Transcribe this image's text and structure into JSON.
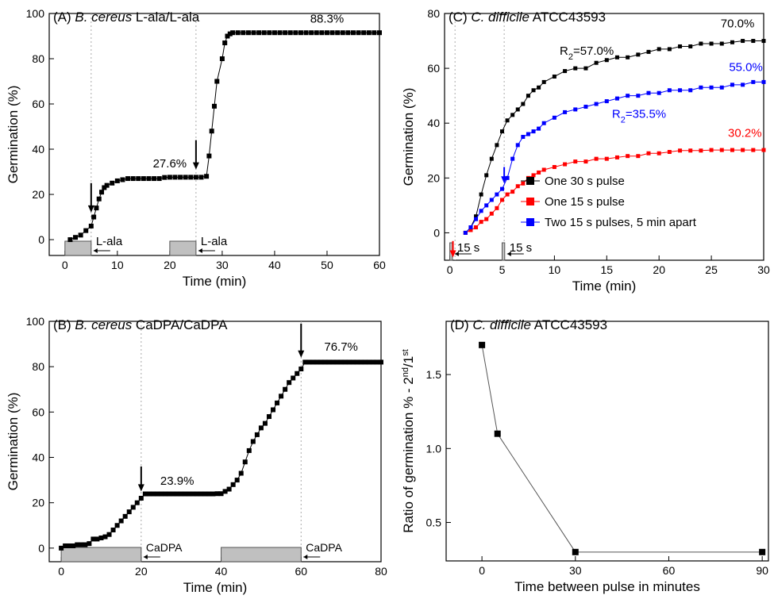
{
  "chart_data": [
    {
      "type": "line",
      "title_parts": [
        {
          "text": "(A) "
        },
        {
          "text": "B. cereus",
          "italic": true
        },
        {
          "text": " L-ala/L-ala"
        }
      ],
      "xlabel": "Time (min)",
      "ylabel": "Germination (%)",
      "xlim": [
        -3,
        60
      ],
      "ylim": [
        -7,
        100
      ],
      "xticks": [
        0,
        10,
        20,
        30,
        40,
        50,
        60
      ],
      "yticks": [
        0,
        20,
        40,
        60,
        80,
        100
      ],
      "x": [
        1,
        2,
        3,
        4,
        5,
        5.5,
        6,
        6.5,
        7,
        7.5,
        8,
        9,
        10,
        11,
        12,
        13,
        14,
        15,
        16,
        17,
        18,
        19,
        20,
        21,
        22,
        23,
        24,
        25,
        26,
        27,
        27.5,
        28,
        28.5,
        29,
        30,
        30.5,
        31,
        31.5,
        32,
        33,
        34,
        35,
        36,
        37,
        38,
        39,
        40,
        41,
        42,
        43,
        44,
        45,
        46,
        47,
        48,
        49,
        50,
        51,
        52,
        53,
        54,
        55,
        56,
        57,
        58,
        59,
        60
      ],
      "values": [
        0,
        1,
        2,
        4,
        6,
        10,
        14,
        18,
        21,
        23,
        24,
        25,
        26,
        26.5,
        27,
        27,
        27,
        27,
        27,
        27,
        27,
        27.5,
        27.6,
        27.6,
        27.6,
        27.6,
        27.6,
        27.6,
        27.6,
        28,
        37,
        48,
        59,
        70,
        80,
        87,
        90,
        91,
        91.5,
        91.5,
        91.5,
        91.5,
        91.5,
        91.5,
        91.5,
        91.5,
        91.5,
        91.5,
        91.5,
        91.5,
        91.5,
        91.5,
        91.5,
        91.5,
        91.5,
        91.5,
        91.5,
        91.5,
        91.5,
        91.5,
        91.5,
        91.5,
        91.5,
        91.5,
        91.5,
        91.5,
        91.5
      ],
      "color": "#000000",
      "markers_x": [
        5,
        25
      ],
      "pulses": [
        {
          "start": 0,
          "end": 5,
          "label": "L-ala"
        },
        {
          "start": 20,
          "end": 25,
          "label": "L-ala"
        }
      ],
      "annotations": [
        {
          "text": "27.6%",
          "color": "#000000"
        },
        {
          "text": "88.3%",
          "color": "#000000"
        }
      ]
    },
    {
      "type": "line",
      "title_parts": [
        {
          "text": "(B) "
        },
        {
          "text": "B. cereus",
          "italic": true
        },
        {
          "text": " CaDPA/CaDPA"
        }
      ],
      "xlabel": "Time (min)",
      "ylabel": "Germination (%)",
      "xlim": [
        -3,
        80
      ],
      "ylim": [
        -6,
        100
      ],
      "xticks": [
        0,
        20,
        40,
        60,
        80
      ],
      "yticks": [
        0,
        20,
        40,
        60,
        80,
        100
      ],
      "x": [
        0,
        1,
        2,
        3,
        4,
        5,
        6,
        7,
        8,
        9,
        10,
        11,
        12,
        13,
        14,
        15,
        16,
        17,
        18,
        19,
        20,
        21,
        22,
        23,
        24,
        25,
        26,
        27,
        28,
        29,
        30,
        31,
        32,
        33,
        34,
        35,
        36,
        37,
        38,
        39,
        40,
        41,
        42,
        43,
        44,
        45,
        46,
        47,
        48,
        49,
        50,
        51,
        52,
        53,
        54,
        55,
        56,
        57,
        58,
        59,
        60,
        61,
        62,
        63,
        64,
        65,
        66,
        67,
        68,
        69,
        70,
        71,
        72,
        73,
        74,
        75,
        76,
        77,
        78,
        79,
        80
      ],
      "values": [
        0,
        1,
        1,
        1,
        1.5,
        1.5,
        1.5,
        2,
        4,
        4,
        4.5,
        5,
        6,
        8,
        10,
        12,
        14,
        16,
        18,
        20,
        22,
        23.9,
        23.9,
        23.9,
        23.9,
        23.9,
        23.9,
        23.9,
        23.9,
        23.9,
        23.9,
        23.9,
        23.9,
        23.9,
        23.9,
        23.9,
        23.9,
        23.9,
        23.9,
        24,
        24,
        25,
        26,
        28,
        30,
        33,
        38,
        43,
        47,
        50,
        53,
        55,
        58,
        61,
        64,
        67,
        70,
        73,
        75,
        77,
        79,
        82,
        82,
        82,
        82,
        82,
        82,
        82,
        82,
        82,
        82,
        82,
        82,
        82,
        82,
        82,
        82,
        82,
        82,
        82,
        82
      ],
      "color": "#000000",
      "markers_x": [
        20,
        60
      ],
      "pulses": [
        {
          "start": 0,
          "end": 20,
          "label": "CaDPA"
        },
        {
          "start": 40,
          "end": 60,
          "label": "CaDPA"
        }
      ],
      "annotations": [
        {
          "text": "23.9%",
          "color": "#000000"
        },
        {
          "text": "76.7%",
          "color": "#000000"
        }
      ]
    },
    {
      "type": "line",
      "title_parts": [
        {
          "text": "(C) "
        },
        {
          "text": "C. difficile",
          "italic": true
        },
        {
          "text": " ATCC43593"
        }
      ],
      "xlabel": "Time (min)",
      "ylabel": "Germination (%)",
      "xlim": [
        -0.5,
        30
      ],
      "ylim": [
        -10,
        80
      ],
      "xticks": [
        0,
        5,
        10,
        15,
        20,
        25,
        30
      ],
      "yticks": [
        0,
        20,
        40,
        60,
        80
      ],
      "x": [
        1.5,
        2,
        2.5,
        3,
        3.5,
        4,
        4.5,
        5,
        5.5,
        6,
        6.5,
        7,
        7.5,
        8,
        8.5,
        9,
        10,
        11,
        12,
        13,
        14,
        15,
        16,
        17,
        18,
        19,
        20,
        21,
        22,
        23,
        24,
        25,
        26,
        27,
        28,
        29,
        30
      ],
      "series": [
        {
          "name": "One 30 s pulse",
          "color": "#000000",
          "values": [
            0,
            2,
            6,
            14,
            21,
            27,
            32,
            37,
            41,
            43,
            45,
            47,
            50,
            52,
            53,
            55,
            57,
            59,
            60,
            60,
            62,
            63,
            64,
            64,
            65,
            66,
            67,
            67,
            68,
            68,
            69,
            69,
            69,
            69.5,
            70,
            70,
            70
          ]
        },
        {
          "name": "One 15 s pulse",
          "color": "#ff0000",
          "values": [
            0,
            1,
            2,
            4,
            5,
            7,
            9,
            12,
            14,
            15,
            17,
            18,
            20,
            21,
            22,
            23,
            24,
            25,
            26,
            26,
            27,
            27,
            27.5,
            28,
            28,
            29,
            29,
            29.5,
            30,
            30,
            30,
            30.2,
            30.2,
            30.2,
            30.2,
            30.2,
            30.2
          ]
        },
        {
          "name": "Two 15 s pulses, 5 min apart",
          "color": "#0000ff",
          "values": [
            0,
            2,
            5,
            8,
            10,
            12,
            14,
            16,
            20,
            27,
            32,
            35,
            36,
            37,
            38,
            40,
            42,
            44,
            45,
            46,
            47,
            48,
            49,
            50,
            50,
            51,
            51,
            52,
            52,
            52,
            53,
            53,
            53,
            54,
            54,
            55,
            55
          ]
        }
      ],
      "legend": "lower right",
      "markers_x": [
        0.5,
        5.2
      ],
      "pulses": [
        {
          "start": 0,
          "end": 0.25,
          "label": "15 s"
        },
        {
          "start": 5,
          "end": 5.25,
          "label": "15 s"
        }
      ],
      "annotations": [
        {
          "text": "70.0%",
          "color": "#000000"
        },
        {
          "text": "55.0%",
          "color": "#0000ff"
        },
        {
          "text": "30.2%",
          "color": "#ff0000"
        },
        {
          "parts": [
            {
              "text": "R"
            },
            {
              "text": "2",
              "sub": true
            },
            {
              "text": "=57.0%"
            }
          ],
          "color": "#000000"
        },
        {
          "parts": [
            {
              "text": "R"
            },
            {
              "text": "2",
              "sub": true
            },
            {
              "text": "=35.5%"
            }
          ],
          "color": "#0000ff"
        }
      ]
    },
    {
      "type": "line",
      "title_parts": [
        {
          "text": "(D) "
        },
        {
          "text": "C. difficile",
          "italic": true
        },
        {
          "text": " ATCC43593"
        }
      ],
      "xlabel": "Time between pulse in minutes",
      "ylabel_parts": [
        {
          "text": "Ratio of germination % - 2"
        },
        {
          "text": "nd",
          "sup": true
        },
        {
          "text": "/"
        },
        {
          "text": "1"
        },
        {
          "text": "st",
          "sup": true
        }
      ],
      "xlim": [
        -11.5,
        92
      ],
      "ylim": [
        0.24,
        1.86
      ],
      "xticks": [
        0,
        30,
        60,
        90
      ],
      "yticks": [
        0.5,
        {
          "value": 1.0,
          "label": "1.0"
        },
        1.5
      ],
      "x": [
        0,
        5,
        30,
        90
      ],
      "values": [
        1.7,
        1.1,
        0.3,
        0.3
      ],
      "color": "#000000"
    }
  ]
}
